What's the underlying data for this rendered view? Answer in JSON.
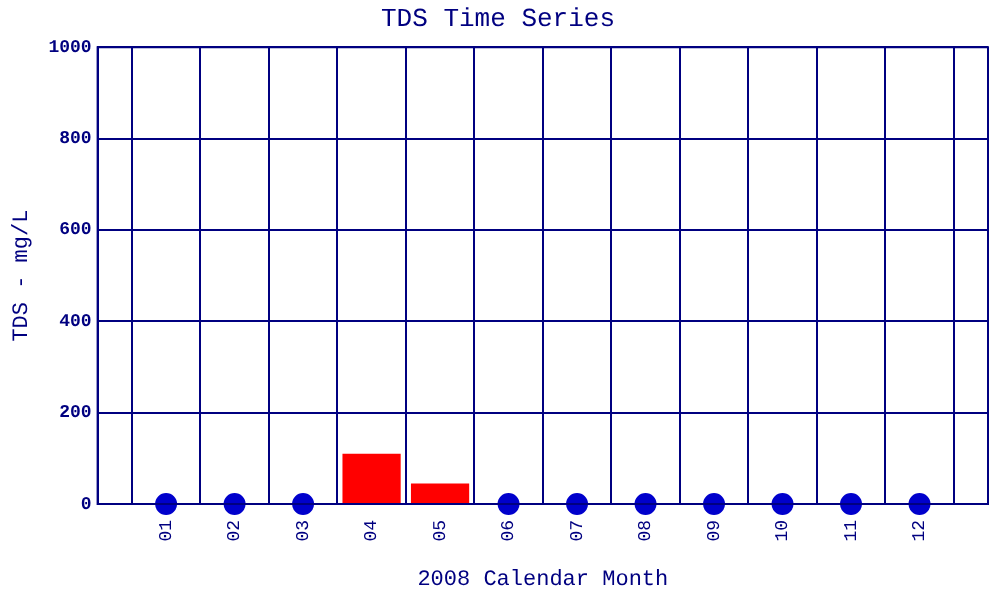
{
  "chart_data": {
    "type": "bar",
    "title": "TDS Time Series",
    "xlabel": "2008 Calendar Month",
    "ylabel": "TDS - mg/L",
    "categories": [
      "01",
      "02",
      "03",
      "04",
      "05",
      "06",
      "07",
      "08",
      "09",
      "10",
      "11",
      "12"
    ],
    "series": [
      {
        "color": "#ff0000",
        "values": [
          null,
          null,
          null,
          110,
          45,
          null,
          null,
          null,
          null,
          null,
          null,
          null
        ]
      },
      {
        "type": "scatter",
        "color": "#0000cc",
        "marker": "circle",
        "values": [
          0,
          0,
          0,
          null,
          null,
          0,
          0,
          0,
          0,
          0,
          0,
          0
        ]
      }
    ],
    "ylim": [
      0,
      1000
    ],
    "yticks": [
      0,
      200,
      400,
      600,
      800,
      1000
    ],
    "grid": true,
    "legend": false
  }
}
